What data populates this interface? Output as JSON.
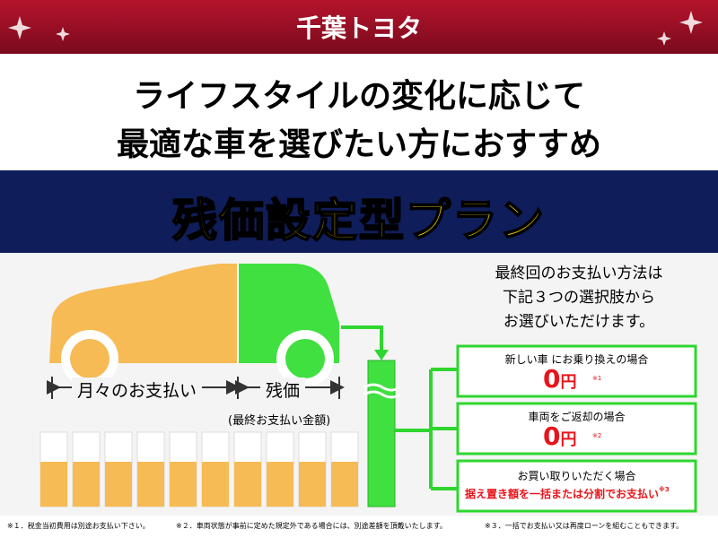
{
  "header": {
    "brand": "千葉トヨタ"
  },
  "headline": {
    "lines": [
      "ライフスタイルの変化に応じて",
      "最適な車を選びたい方におすすめ"
    ]
  },
  "banner": {
    "title": "残価設定型プラン"
  },
  "diagram": {
    "monthly": "月々のお支払い",
    "residual": "残価",
    "residual_note": "(最終お支払い金額)"
  },
  "intro": {
    "lines": [
      "最終回のお支払い方法は",
      "下記３つの選択肢から",
      "お選びいただけます。"
    ]
  },
  "options": [
    {
      "title": "新しい車 にお乗り換えの場合",
      "amount": "0",
      "unit": "円",
      "note": "※1"
    },
    {
      "title": "車両をご返却の場合",
      "amount": "0",
      "unit": "円",
      "note": "※2"
    },
    {
      "title": "お買い取りいただく場合",
      "detail": "据え置き額を一括または分割でお支払い",
      "note": "※3"
    }
  ],
  "footnotes": [
    "※１．税金当初費用は別途お支払い下さい。",
    "※２．車両状態が事前に定めた規定外である場合には、別途差額を頂戴いたします。",
    "※３．一括でお支払い又は再度ローンを組むこともできます。"
  ]
}
